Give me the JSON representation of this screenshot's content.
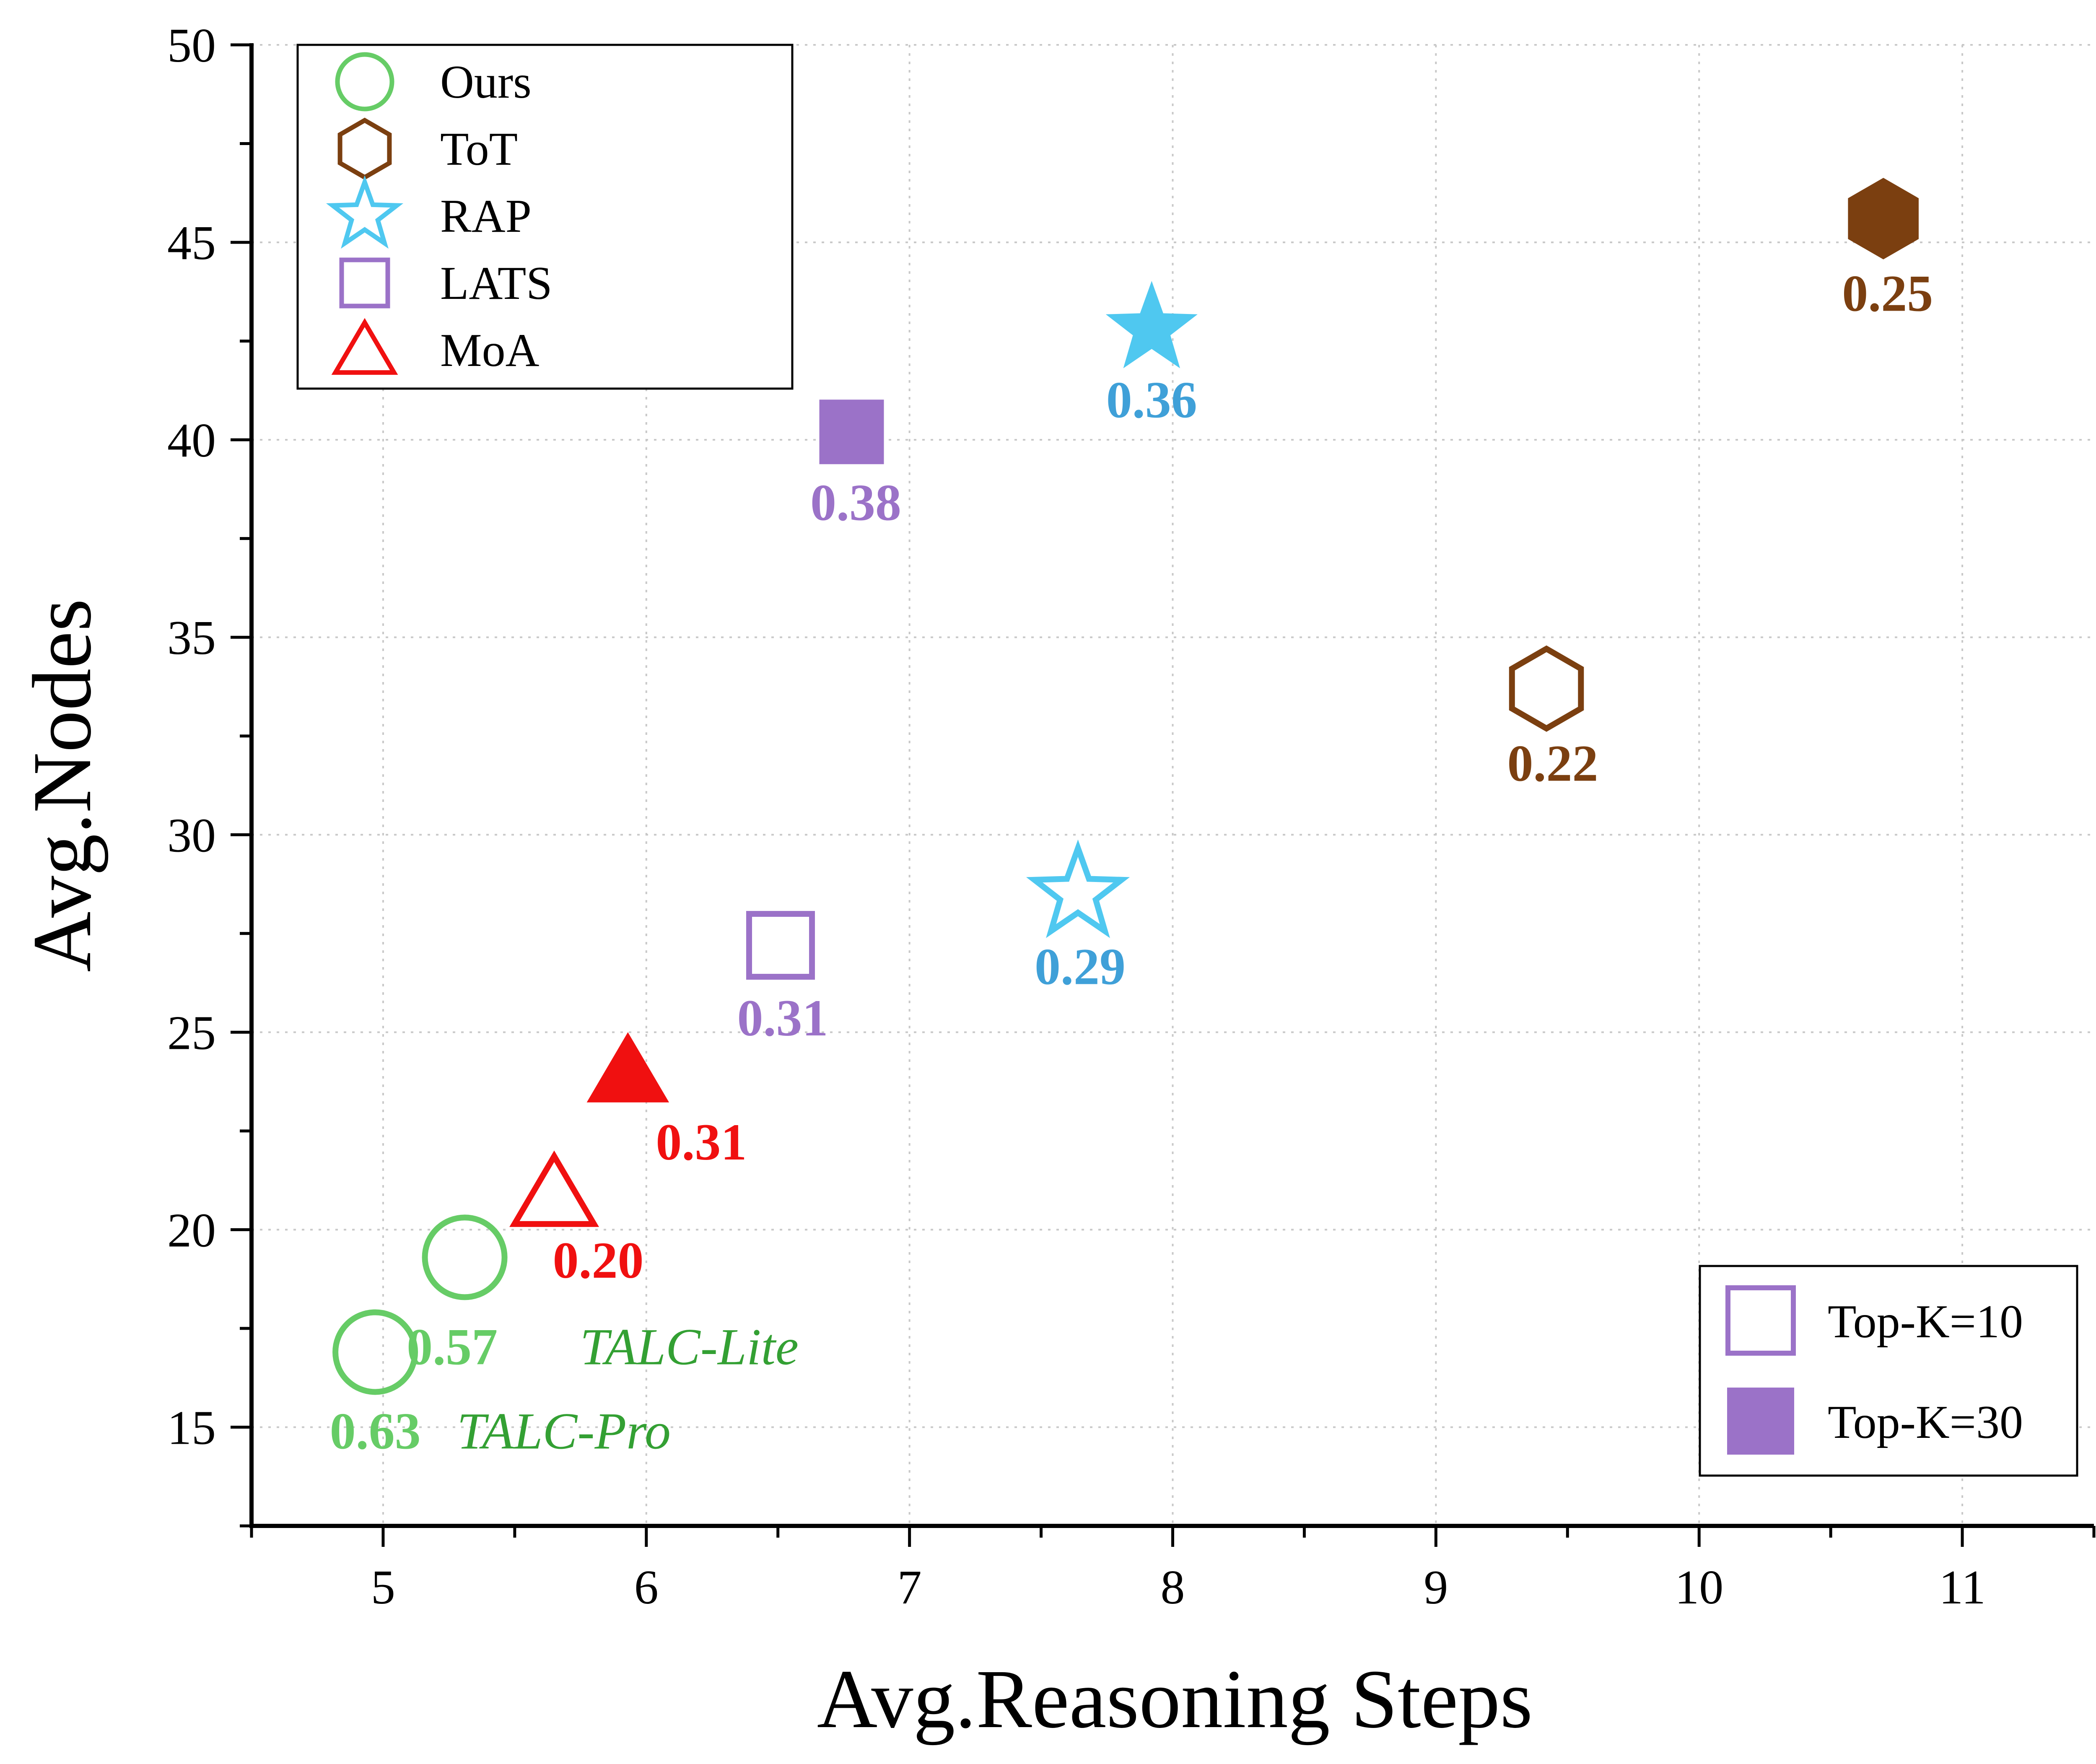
{
  "chart_data": {
    "type": "scatter",
    "xlabel": "Avg.Reasoning Steps",
    "ylabel": "Avg.Nodes",
    "xlim": [
      4.5,
      11.5
    ],
    "ylim": [
      12.5,
      50
    ],
    "xticks": [
      "5",
      "6",
      "7",
      "8",
      "9",
      "10",
      "11"
    ],
    "yticks": [
      "15",
      "20",
      "25",
      "30",
      "35",
      "40",
      "45",
      "50"
    ],
    "grid": true,
    "legend_position": "top-left",
    "legend": [
      {
        "label": "Ours",
        "marker": "circle",
        "color": "#66CC66"
      },
      {
        "label": "ToT",
        "marker": "hexagon",
        "color": "#7B3F10"
      },
      {
        "label": "RAP",
        "marker": "star",
        "color": "#4FC8F0"
      },
      {
        "label": "LATS",
        "marker": "square",
        "color": "#9B72C8"
      },
      {
        "label": "MoA",
        "marker": "triangle",
        "color": "#F01010"
      }
    ],
    "legend2_position": "bottom-right",
    "legend2": [
      {
        "label": "Top-K=10",
        "filled": false,
        "marker": "square",
        "color": "#9B72C8"
      },
      {
        "label": "Top-K=30",
        "filled": true,
        "marker": "square",
        "color": "#9B72C8"
      }
    ],
    "points": [
      {
        "series": "Ours",
        "variant": "TALC-Pro",
        "x": 4.97,
        "y": 16.9,
        "filled": false,
        "label": "0.63",
        "label_color": "#66CC66",
        "tag": "TALC-Pro",
        "tag_color": "#33A033"
      },
      {
        "series": "Ours",
        "variant": "TALC-Lite",
        "x": 5.31,
        "y": 19.3,
        "filled": false,
        "label": "0.57",
        "label_color": "#66CC66",
        "tag": "TALC-Lite",
        "tag_color": "#33A033"
      },
      {
        "series": "MoA",
        "x": 5.65,
        "y": 20.8,
        "filled": false,
        "label": "0.20",
        "label_color": "#F01010"
      },
      {
        "series": "MoA",
        "x": 5.93,
        "y": 23.9,
        "filled": true,
        "label": "0.31",
        "label_color": "#F01010"
      },
      {
        "series": "LATS",
        "x": 6.51,
        "y": 27.2,
        "filled": false,
        "label": "0.31",
        "label_color": "#9B72C8"
      },
      {
        "series": "LATS",
        "x": 6.78,
        "y": 40.2,
        "filled": true,
        "label": "0.38",
        "label_color": "#9B72C8"
      },
      {
        "series": "RAP",
        "x": 7.64,
        "y": 28.5,
        "filled": false,
        "label": "0.29",
        "label_color": "#3FA0D8"
      },
      {
        "series": "RAP",
        "x": 7.92,
        "y": 42.8,
        "filled": true,
        "label": "0.36",
        "label_color": "#3FA0D8"
      },
      {
        "series": "ToT",
        "x": 9.42,
        "y": 33.7,
        "filled": false,
        "label": "0.22",
        "label_color": "#7B3F10"
      },
      {
        "series": "ToT",
        "x": 10.7,
        "y": 45.6,
        "filled": true,
        "label": "0.25",
        "label_color": "#7B3F10"
      }
    ]
  }
}
